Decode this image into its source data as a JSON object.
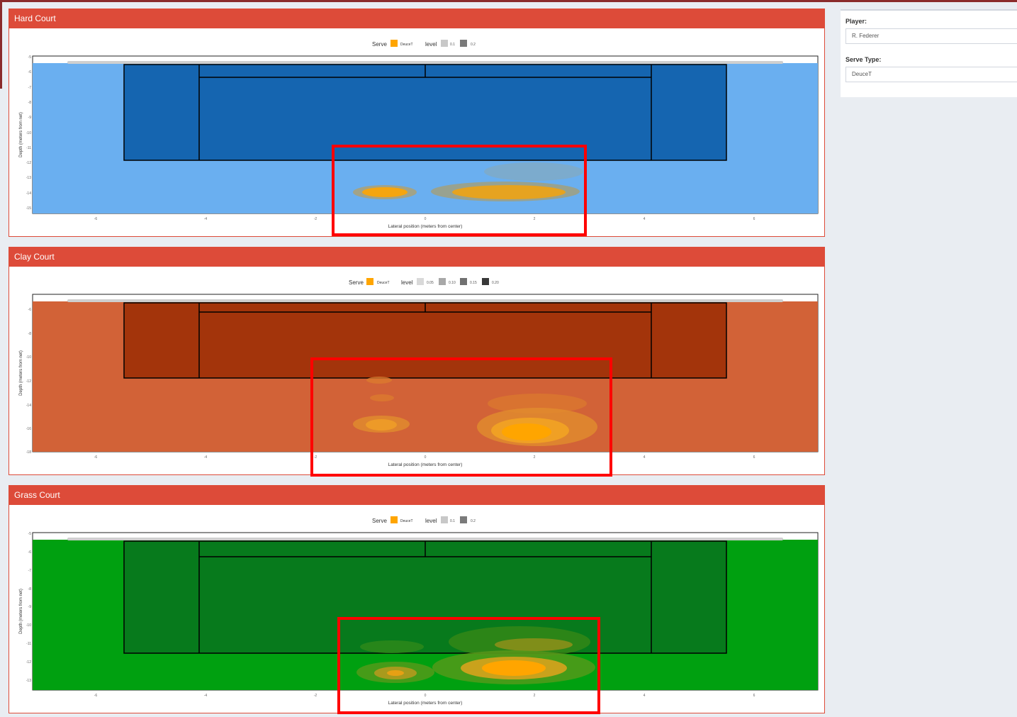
{
  "sidebar": {
    "player_label": "Player:",
    "player_value": "R. Federer",
    "serve_type_label": "Serve Type:",
    "serve_type_value": "DeuceT"
  },
  "panels": [
    {
      "title": "Hard Court",
      "court_color": "#6aaff0",
      "box_color": "#1565b0",
      "legend": {
        "serve_label": "Serve",
        "serve_value": "DeuceT",
        "level_label": "level",
        "levels": [
          "0.1",
          "0.2"
        ]
      },
      "x_axis_label": "Lateral position (meters from center)",
      "y_axis_label": "Depth (meters from net)",
      "x_ticks": [
        "-6",
        "-4",
        "-2",
        "0",
        "2",
        "4",
        "6"
      ],
      "y_ticks": [
        "-5",
        "-6",
        "-7",
        "-8",
        "-9",
        "-10",
        "-11",
        "-12",
        "-13",
        "-14",
        "-15"
      ]
    },
    {
      "title": "Clay Court",
      "court_color": "#d26237",
      "box_color": "#a3340b",
      "legend": {
        "serve_label": "Serve",
        "serve_value": "DeuceT",
        "level_label": "level",
        "levels": [
          "0.05",
          "0.10",
          "0.15",
          "0.20"
        ]
      },
      "x_axis_label": "Lateral position (meters from center)",
      "y_axis_label": "Depth (meters from net)",
      "x_ticks": [
        "-6",
        "-4",
        "-2",
        "0",
        "2",
        "4",
        "6"
      ],
      "y_ticks": [
        "-6",
        "-8",
        "-10",
        "-12",
        "-14",
        "-16",
        "-18"
      ]
    },
    {
      "title": "Grass Court",
      "court_color": "#00a010",
      "box_color": "#077a1c",
      "legend": {
        "serve_label": "Serve",
        "serve_value": "DeuceT",
        "level_label": "level",
        "levels": [
          "0.1",
          "0.2"
        ]
      },
      "x_axis_label": "Lateral position (meters from center)",
      "y_axis_label": "Depth (meters from net)",
      "x_ticks": [
        "-6",
        "-4",
        "-2",
        "0",
        "2",
        "4",
        "6"
      ],
      "y_ticks": [
        "-5",
        "-6",
        "-7",
        "-8",
        "-9",
        "-10",
        "-11",
        "-12",
        "-13"
      ]
    }
  ],
  "colors": {
    "header": "#dd4b39",
    "highlight": "#ff0000",
    "serve": "#ffa500"
  }
}
